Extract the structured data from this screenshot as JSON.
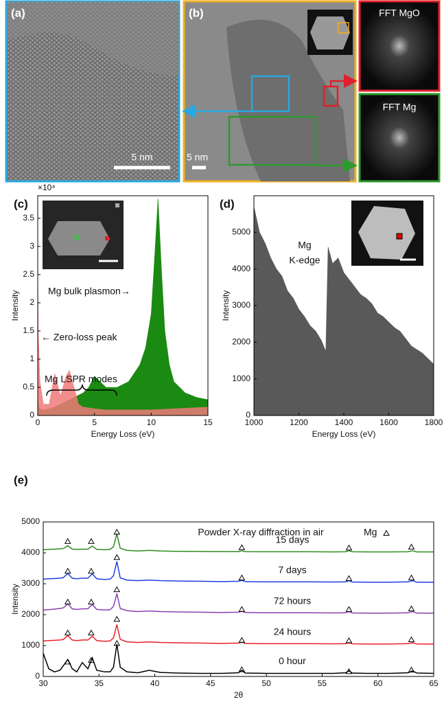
{
  "figure": {
    "a": {
      "label": "(a)",
      "scale_bar": "5 nm"
    },
    "b": {
      "label": "(b)",
      "scale_bar": "5 nm"
    },
    "fft_mgo": "FFT MgO",
    "fft_mg": "FFT Mg"
  },
  "chart_data": [
    {
      "type": "area",
      "label": "(c)",
      "x_label": "Energy Loss (eV)",
      "y_label": "Intensity",
      "y_multiplier": "×10⁴",
      "xlim": [
        0,
        15
      ],
      "xticks": [
        0,
        5,
        10,
        15
      ],
      "ylim": [
        0,
        3.9
      ],
      "yticks": [
        0,
        0.5,
        1,
        1.5,
        2,
        2.5,
        3,
        3.5
      ],
      "annotations": [
        "Mg bulk plasmon→",
        "← Zero-loss peak",
        "Mg LSPR modes"
      ],
      "series": [
        {
          "color": "#1a8a12",
          "x": [
            0,
            0.1,
            0.3,
            0.6,
            1,
            1.5,
            2,
            2.5,
            3,
            3.5,
            4,
            4.5,
            5,
            5.5,
            6,
            7,
            8,
            9,
            9.5,
            10,
            10.3,
            10.6,
            10.9,
            11.2,
            11.6,
            12,
            13,
            14,
            15
          ],
          "values": [
            0.3,
            0.15,
            0.1,
            0.1,
            0.12,
            0.15,
            0.2,
            0.25,
            0.3,
            0.35,
            0.4,
            0.5,
            0.7,
            0.6,
            0.5,
            0.5,
            0.6,
            0.9,
            1.2,
            1.8,
            2.8,
            3.85,
            2.6,
            1.5,
            0.9,
            0.6,
            0.4,
            0.32,
            0.28
          ]
        },
        {
          "color": "#f07a7a",
          "x": [
            0,
            0.05,
            0.2,
            0.5,
            1,
            1.5,
            2,
            2.5,
            2.8,
            3.2,
            3.6,
            4,
            5,
            6,
            8,
            10,
            12,
            15
          ],
          "values": [
            2.6,
            1.5,
            0.6,
            0.2,
            0.2,
            0.75,
            0.35,
            0.7,
            0.8,
            0.5,
            0.2,
            0.15,
            0.12,
            0.1,
            0.1,
            0.1,
            0.12,
            0.15
          ]
        }
      ]
    },
    {
      "type": "area",
      "label": "(d)",
      "x_label": "Energy Loss (eV)",
      "y_label": "Intensity",
      "annotations": [
        "Mg",
        "K-edge"
      ],
      "xlim": [
        1000,
        1800
      ],
      "xticks": [
        1000,
        1200,
        1400,
        1600,
        1800
      ],
      "ylim": [
        0,
        6000
      ],
      "yticks": [
        0,
        1000,
        2000,
        3000,
        4000,
        5000
      ],
      "series": [
        {
          "color": "#595959",
          "x": [
            1000,
            1025,
            1050,
            1075,
            1100,
            1125,
            1150,
            1175,
            1200,
            1225,
            1250,
            1275,
            1300,
            1320,
            1330,
            1350,
            1375,
            1400,
            1425,
            1450,
            1475,
            1500,
            1525,
            1550,
            1575,
            1600,
            1625,
            1650,
            1675,
            1700,
            1725,
            1750,
            1775,
            1800
          ],
          "values": [
            5700,
            5000,
            4700,
            4300,
            4000,
            3800,
            3400,
            3200,
            2900,
            2700,
            2450,
            2300,
            2050,
            1750,
            4600,
            4150,
            4300,
            3900,
            3700,
            3500,
            3300,
            3200,
            3050,
            2800,
            2700,
            2550,
            2400,
            2300,
            2100,
            1900,
            1800,
            1700,
            1550,
            1400
          ]
        }
      ]
    },
    {
      "type": "line",
      "label": "(e)",
      "title": "Powder X-ray diffraction in air",
      "legend": "Mg",
      "x_label": "2θ",
      "y_label": "Intensity",
      "xlim": [
        30,
        65
      ],
      "xticks": [
        30,
        35,
        40,
        45,
        50,
        55,
        60,
        65
      ],
      "ylim": [
        0,
        5000
      ],
      "yticks": [
        0,
        1000,
        2000,
        3000,
        4000,
        5000
      ],
      "x": [
        30,
        30.5,
        31,
        31.5,
        31.8,
        32.2,
        32.6,
        33,
        33.5,
        34,
        34.4,
        34.8,
        35.5,
        36,
        36.3,
        36.6,
        36.9,
        37.5,
        38.5,
        39.5,
        40.5,
        42,
        44,
        46,
        47.5,
        47.8,
        48.1,
        50,
        52,
        54,
        56,
        57.1,
        57.4,
        57.7,
        59,
        61,
        62.7,
        63.1,
        63.5,
        65
      ],
      "peak_x": [
        32.2,
        34.3,
        36.6,
        47.8,
        57.4,
        63.0
      ],
      "series": [
        {
          "name": "15 days",
          "color": "#2e8b1e",
          "values": [
            4100,
            4110,
            4120,
            4130,
            4140,
            4230,
            4120,
            4110,
            4120,
            4120,
            4220,
            4110,
            4100,
            4110,
            4200,
            4620,
            4150,
            4080,
            4060,
            4080,
            4060,
            4050,
            4045,
            4040,
            4040,
            4070,
            4040,
            4035,
            4035,
            4035,
            4030,
            4035,
            4070,
            4035,
            4030,
            4030,
            4035,
            4070,
            4030,
            4030
          ],
          "peak_values": [
            4380,
            4380,
            4680,
            4180,
            4170,
            4200
          ]
        },
        {
          "name": "7 days",
          "color": "#1f3fe0",
          "values": [
            3150,
            3160,
            3170,
            3180,
            3200,
            3330,
            3180,
            3160,
            3180,
            3180,
            3320,
            3160,
            3140,
            3150,
            3260,
            3720,
            3190,
            3120,
            3100,
            3120,
            3100,
            3090,
            3080,
            3070,
            3080,
            3110,
            3070,
            3060,
            3060,
            3060,
            3055,
            3060,
            3100,
            3055,
            3050,
            3050,
            3060,
            3100,
            3050,
            3050
          ],
          "peak_values": [
            3420,
            3420,
            3860,
            3200,
            3180,
            3200
          ]
        },
        {
          "name": "72 hours",
          "color": "#8a3fb0",
          "values": [
            2150,
            2160,
            2180,
            2200,
            2220,
            2350,
            2190,
            2170,
            2190,
            2190,
            2330,
            2170,
            2150,
            2160,
            2270,
            2680,
            2200,
            2130,
            2100,
            2120,
            2100,
            2090,
            2080,
            2070,
            2080,
            2110,
            2070,
            2060,
            2060,
            2060,
            2055,
            2060,
            2100,
            2055,
            2050,
            2050,
            2060,
            2100,
            2050,
            2050
          ],
          "peak_values": [
            2420,
            2420,
            2820,
            2180,
            2180,
            2200
          ]
        },
        {
          "name": "24 hours",
          "color": "#e8202a",
          "values": [
            1150,
            1160,
            1170,
            1180,
            1200,
            1320,
            1180,
            1160,
            1180,
            1180,
            1300,
            1160,
            1140,
            1150,
            1250,
            1680,
            1200,
            1120,
            1100,
            1120,
            1100,
            1090,
            1080,
            1070,
            1080,
            1110,
            1070,
            1060,
            1060,
            1060,
            1055,
            1060,
            1090,
            1055,
            1050,
            1050,
            1060,
            1090,
            1050,
            1050
          ],
          "peak_values": [
            1420,
            1420,
            1860,
            1180,
            1170,
            1200
          ]
        },
        {
          "name": "0 hour",
          "color": "#000000",
          "values": [
            750,
            250,
            150,
            200,
            350,
            550,
            250,
            150,
            450,
            250,
            600,
            200,
            150,
            150,
            300,
            1050,
            300,
            150,
            120,
            200,
            130,
            110,
            100,
            100,
            120,
            200,
            110,
            100,
            100,
            100,
            100,
            120,
            180,
            110,
            100,
            100,
            120,
            180,
            110,
            100
          ],
          "peak_values": [
            480,
            530,
            1080,
            230,
            170,
            220
          ]
        }
      ]
    }
  ]
}
